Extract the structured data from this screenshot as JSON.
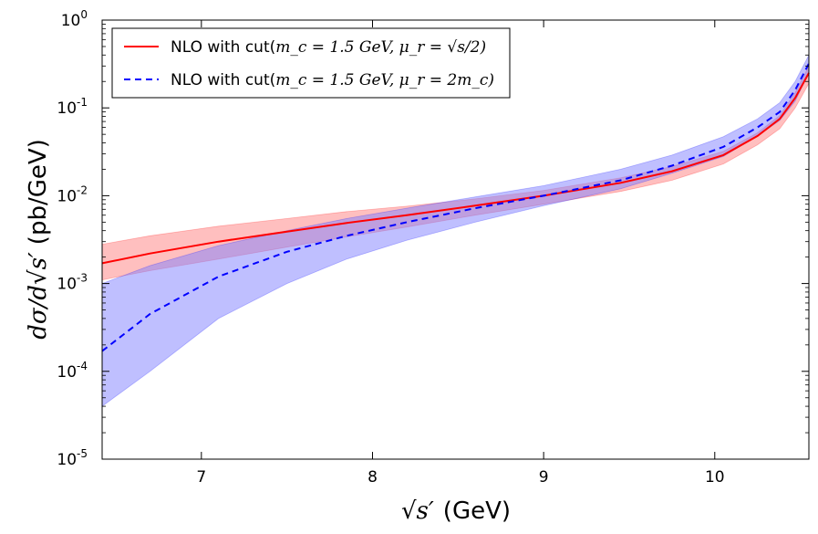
{
  "chart_data": {
    "type": "line",
    "xlabel_prefix": "√",
    "xlabel_var": "s′",
    "xlabel_unit": "(GeV)",
    "ylabel_var": "dσ/d√s′",
    "ylabel_unit": "(pb/GeV)",
    "xlim": [
      6.42,
      10.55
    ],
    "ylim": [
      1e-05,
      1
    ],
    "yscale": "log",
    "x_ticks": [
      7,
      8,
      9,
      10
    ],
    "x_tick_labels": [
      "7",
      "8",
      "9",
      "10"
    ],
    "y_tick_exponents": [
      -5,
      -4,
      -3,
      -2,
      -1,
      0
    ],
    "y_tick_base": "10",
    "y_tick_labels": [
      "-5",
      "-4",
      "-3",
      "-2",
      "-1",
      "0"
    ],
    "legend_position": "top-left",
    "series": [
      {
        "name_prefix": "NLO with cut(",
        "name_math": "m_c = 1.5 GeV, μ_r = √s/2)",
        "color": "#ff0000",
        "band_color": "#ff8080",
        "style": "solid",
        "x": [
          6.42,
          6.7,
          7.1,
          7.5,
          7.85,
          8.2,
          8.6,
          9.0,
          9.45,
          9.75,
          10.05,
          10.25,
          10.38,
          10.47,
          10.55
        ],
        "y": [
          0.0017,
          0.0022,
          0.003,
          0.0039,
          0.0049,
          0.006,
          0.0077,
          0.01,
          0.014,
          0.019,
          0.029,
          0.048,
          0.075,
          0.13,
          0.25
        ],
        "y_low": [
          0.0011,
          0.0014,
          0.0019,
          0.0026,
          0.0034,
          0.0044,
          0.006,
          0.008,
          0.0112,
          0.015,
          0.023,
          0.038,
          0.058,
          0.1,
          0.19
        ],
        "y_high": [
          0.0028,
          0.0035,
          0.0045,
          0.0055,
          0.0066,
          0.0076,
          0.0092,
          0.0115,
          0.016,
          0.0215,
          0.032,
          0.052,
          0.082,
          0.15,
          0.3
        ]
      },
      {
        "name_prefix": "NLO with cut(",
        "name_math": "m_c = 1.5 GeV, μ_r = 2m_c)",
        "color": "#0000ff",
        "band_color": "#8080ff",
        "style": "dashed",
        "x": [
          6.42,
          6.7,
          7.1,
          7.5,
          7.85,
          8.2,
          8.6,
          9.0,
          9.45,
          9.75,
          10.05,
          10.25,
          10.38,
          10.47,
          10.55
        ],
        "y": [
          0.00017,
          0.00045,
          0.0012,
          0.0023,
          0.0035,
          0.005,
          0.0072,
          0.01,
          0.015,
          0.022,
          0.036,
          0.06,
          0.09,
          0.16,
          0.32
        ],
        "y_low": [
          4e-05,
          0.0001,
          0.0004,
          0.001,
          0.0019,
          0.0031,
          0.005,
          0.0077,
          0.012,
          0.018,
          0.028,
          0.048,
          0.072,
          0.12,
          0.25
        ],
        "y_high": [
          0.001,
          0.0016,
          0.0027,
          0.004,
          0.0055,
          0.0072,
          0.0097,
          0.013,
          0.02,
          0.029,
          0.047,
          0.075,
          0.115,
          0.2,
          0.4
        ]
      }
    ]
  }
}
